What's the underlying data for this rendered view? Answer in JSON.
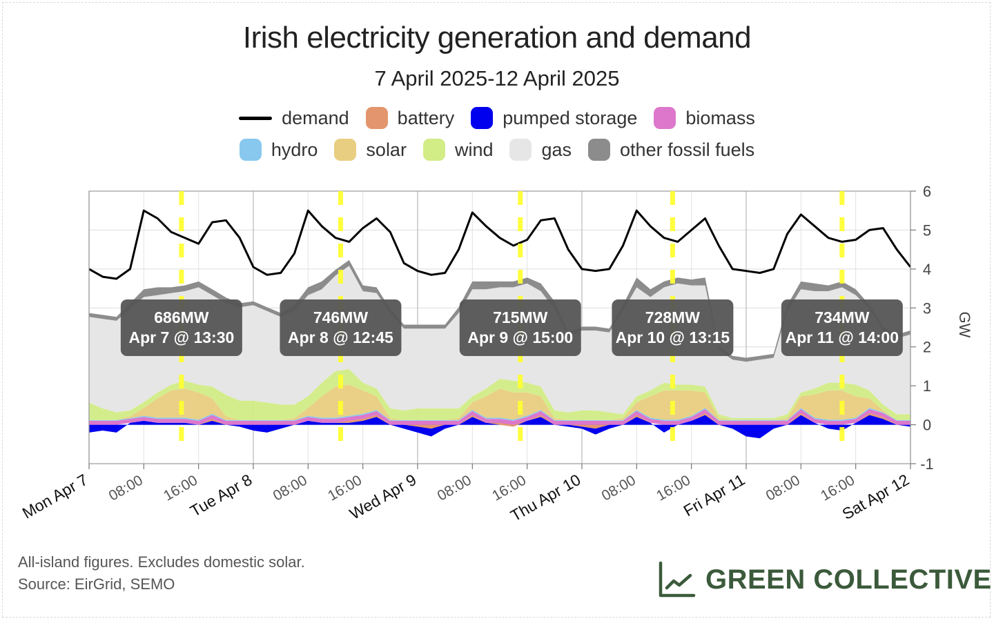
{
  "chart_data": {
    "type": "area",
    "title": "Irish electricity generation and demand",
    "subtitle": "7 April 2025-12 April 2025",
    "ylabel": "GW",
    "ylim": [
      -1,
      6
    ],
    "y_ticks": [
      "-1",
      "0",
      "1",
      "2",
      "3",
      "4",
      "5",
      "6"
    ],
    "x_ticks": [
      {
        "label": "Mon Apr 7",
        "h": 0,
        "major": true
      },
      {
        "label": "08:00",
        "h": 8,
        "major": false
      },
      {
        "label": "16:00",
        "h": 16,
        "major": false
      },
      {
        "label": "Tue Apr 8",
        "h": 24,
        "major": true
      },
      {
        "label": "08:00",
        "h": 32,
        "major": false
      },
      {
        "label": "16:00",
        "h": 40,
        "major": false
      },
      {
        "label": "Wed Apr 9",
        "h": 48,
        "major": true
      },
      {
        "label": "08:00",
        "h": 56,
        "major": false
      },
      {
        "label": "16:00",
        "h": 64,
        "major": false
      },
      {
        "label": "Thu Apr 10",
        "h": 72,
        "major": true
      },
      {
        "label": "08:00",
        "h": 80,
        "major": false
      },
      {
        "label": "16:00",
        "h": 88,
        "major": false
      },
      {
        "label": "Fri Apr 11",
        "h": 96,
        "major": true
      },
      {
        "label": "08:00",
        "h": 104,
        "major": false
      },
      {
        "label": "16:00",
        "h": 112,
        "major": false
      },
      {
        "label": "Sat Apr 12",
        "h": 120,
        "major": true
      }
    ],
    "grid": true,
    "legend_position": "top",
    "legend": [
      {
        "name": "demand",
        "kind": "line",
        "color": "#000000"
      },
      {
        "name": "battery",
        "kind": "area",
        "color": "#e3966e"
      },
      {
        "name": "pumped storage",
        "kind": "area",
        "color": "#0000ee"
      },
      {
        "name": "biomass",
        "kind": "area",
        "color": "#dd77cc"
      },
      {
        "name": "hydro",
        "kind": "area",
        "color": "#88c8ee"
      },
      {
        "name": "solar",
        "kind": "area",
        "color": "#e8ce80"
      },
      {
        "name": "wind",
        "kind": "area",
        "color": "#d2ec86"
      },
      {
        "name": "gas",
        "kind": "area",
        "color": "#e6e6e6"
      },
      {
        "name": "other fossil fuels",
        "kind": "area",
        "color": "#8c8c8c"
      }
    ],
    "x_hours": [
      0,
      2,
      4,
      6,
      8,
      10,
      12,
      14,
      16,
      18,
      20,
      22,
      24,
      26,
      28,
      30,
      32,
      34,
      36,
      38,
      40,
      42,
      44,
      46,
      48,
      50,
      52,
      54,
      56,
      58,
      60,
      62,
      64,
      66,
      68,
      70,
      72,
      74,
      76,
      78,
      80,
      82,
      84,
      86,
      88,
      90,
      92,
      94,
      96,
      98,
      100,
      102,
      104,
      106,
      108,
      110,
      112,
      114,
      116,
      118,
      120
    ],
    "series": [
      {
        "name": "demand",
        "values": [
          4.0,
          3.8,
          3.75,
          4.0,
          5.5,
          5.3,
          4.95,
          4.8,
          4.65,
          5.2,
          5.25,
          4.8,
          4.05,
          3.85,
          3.9,
          4.4,
          5.5,
          5.1,
          4.8,
          4.7,
          5.05,
          5.3,
          4.95,
          4.15,
          3.95,
          3.85,
          3.9,
          4.5,
          5.45,
          5.1,
          4.8,
          4.6,
          4.75,
          5.25,
          5.3,
          4.5,
          4.0,
          3.95,
          4.0,
          4.6,
          5.5,
          5.1,
          4.8,
          4.7,
          5.0,
          5.3,
          4.6,
          4.0,
          3.95,
          3.9,
          4.0,
          4.9,
          5.4,
          5.1,
          4.8,
          4.7,
          4.75,
          5.0,
          5.05,
          4.5,
          4.05
        ]
      },
      {
        "name": "pumped storage",
        "values": [
          -0.2,
          -0.15,
          -0.2,
          0.05,
          0.1,
          0.05,
          0.05,
          0.05,
          0.0,
          0.1,
          0.0,
          -0.05,
          -0.15,
          -0.2,
          -0.1,
          0.0,
          0.1,
          0.05,
          0.05,
          0.05,
          0.1,
          0.2,
          0.0,
          -0.1,
          -0.2,
          -0.3,
          -0.1,
          0.0,
          0.2,
          0.05,
          0.05,
          0.0,
          0.1,
          0.2,
          0.0,
          -0.05,
          -0.1,
          -0.25,
          -0.1,
          0.0,
          0.2,
          0.05,
          -0.2,
          0.0,
          0.1,
          0.25,
          0.0,
          -0.1,
          -0.3,
          -0.35,
          -0.1,
          0.0,
          0.25,
          0.05,
          -0.1,
          -0.15,
          0.05,
          0.25,
          0.15,
          0.0,
          -0.05
        ]
      },
      {
        "name": "battery",
        "values": [
          0.0,
          0.0,
          0.0,
          0.0,
          0.0,
          0.0,
          0.0,
          0.0,
          0.0,
          0.05,
          0.0,
          0.0,
          0.0,
          0.0,
          0.0,
          0.0,
          0.0,
          0.0,
          0.0,
          0.05,
          0.05,
          0.05,
          0.0,
          0.0,
          -0.05,
          -0.1,
          0.0,
          0.0,
          0.05,
          0.0,
          -0.05,
          -0.05,
          0.0,
          0.05,
          0.0,
          0.0,
          -0.05,
          -0.1,
          0.0,
          0.0,
          0.05,
          0.0,
          0.0,
          0.0,
          0.0,
          0.05,
          0.0,
          0.0,
          0.0,
          0.0,
          0.0,
          0.0,
          0.05,
          0.0,
          0.0,
          0.0,
          0.0,
          0.05,
          0.05,
          0.0,
          0.0
        ]
      },
      {
        "name": "biomass",
        "values": [
          0.1,
          0.1,
          0.1,
          0.1,
          0.1,
          0.1,
          0.1,
          0.1,
          0.1,
          0.1,
          0.1,
          0.1,
          0.1,
          0.1,
          0.1,
          0.1,
          0.1,
          0.1,
          0.1,
          0.1,
          0.1,
          0.1,
          0.1,
          0.1,
          0.1,
          0.1,
          0.1,
          0.1,
          0.1,
          0.1,
          0.1,
          0.1,
          0.1,
          0.1,
          0.1,
          0.1,
          0.1,
          0.1,
          0.1,
          0.1,
          0.1,
          0.1,
          0.1,
          0.1,
          0.1,
          0.1,
          0.1,
          0.1,
          0.1,
          0.1,
          0.1,
          0.1,
          0.1,
          0.1,
          0.1,
          0.1,
          0.1,
          0.1,
          0.1,
          0.1,
          0.1
        ]
      },
      {
        "name": "hydro",
        "values": [
          0.02,
          0.02,
          0.02,
          0.02,
          0.03,
          0.03,
          0.03,
          0.03,
          0.03,
          0.03,
          0.02,
          0.02,
          0.02,
          0.02,
          0.02,
          0.02,
          0.03,
          0.03,
          0.03,
          0.03,
          0.03,
          0.03,
          0.02,
          0.02,
          0.02,
          0.02,
          0.02,
          0.02,
          0.03,
          0.03,
          0.03,
          0.03,
          0.03,
          0.03,
          0.02,
          0.02,
          0.02,
          0.02,
          0.02,
          0.02,
          0.03,
          0.03,
          0.03,
          0.03,
          0.03,
          0.03,
          0.02,
          0.02,
          0.02,
          0.02,
          0.02,
          0.02,
          0.03,
          0.03,
          0.03,
          0.03,
          0.03,
          0.03,
          0.02,
          0.02,
          0.02
        ]
      },
      {
        "name": "solar",
        "values": [
          0.0,
          0.0,
          0.0,
          0.05,
          0.2,
          0.5,
          0.7,
          0.75,
          0.7,
          0.4,
          0.1,
          0.0,
          0.0,
          0.0,
          0.0,
          0.05,
          0.2,
          0.55,
          0.8,
          0.8,
          0.6,
          0.35,
          0.05,
          0.0,
          0.0,
          0.0,
          0.0,
          0.05,
          0.2,
          0.55,
          0.75,
          0.7,
          0.6,
          0.35,
          0.05,
          0.0,
          0.0,
          0.0,
          0.0,
          0.05,
          0.2,
          0.55,
          0.75,
          0.75,
          0.65,
          0.4,
          0.05,
          0.0,
          0.0,
          0.0,
          0.0,
          0.05,
          0.3,
          0.6,
          0.75,
          0.75,
          0.55,
          0.25,
          0.05,
          0.0,
          0.0
        ]
      },
      {
        "name": "wind",
        "values": [
          0.45,
          0.3,
          0.2,
          0.15,
          0.15,
          0.15,
          0.15,
          0.2,
          0.2,
          0.3,
          0.55,
          0.5,
          0.5,
          0.45,
          0.4,
          0.35,
          0.3,
          0.35,
          0.4,
          0.4,
          0.2,
          0.2,
          0.25,
          0.25,
          0.3,
          0.3,
          0.3,
          0.25,
          0.15,
          0.2,
          0.25,
          0.3,
          0.25,
          0.25,
          0.2,
          0.2,
          0.25,
          0.25,
          0.2,
          0.1,
          0.15,
          0.15,
          0.2,
          0.15,
          0.15,
          0.15,
          0.1,
          0.05,
          0.05,
          0.05,
          0.05,
          0.1,
          0.1,
          0.15,
          0.2,
          0.2,
          0.3,
          0.2,
          0.15,
          0.15,
          0.15
        ]
      },
      {
        "name": "gas",
        "values": [
          2.2,
          2.3,
          2.35,
          2.6,
          2.7,
          2.5,
          2.35,
          2.3,
          2.5,
          2.35,
          2.35,
          2.4,
          2.45,
          2.35,
          2.25,
          2.4,
          2.6,
          2.4,
          2.45,
          2.65,
          2.35,
          2.45,
          2.45,
          2.1,
          2.05,
          2.05,
          2.05,
          2.45,
          2.75,
          2.55,
          2.35,
          2.4,
          2.55,
          2.45,
          2.6,
          1.95,
          2.05,
          2.05,
          2.05,
          2.65,
          2.8,
          2.4,
          2.45,
          2.6,
          2.55,
          2.6,
          1.65,
          1.5,
          1.45,
          1.5,
          1.55,
          2.65,
          2.65,
          2.5,
          2.35,
          2.45,
          2.3,
          2.1,
          1.9,
          1.95,
          2.05
        ]
      },
      {
        "name": "other fossil fuels",
        "values": [
          0.1,
          0.1,
          0.1,
          0.15,
          0.2,
          0.2,
          0.15,
          0.15,
          0.15,
          0.15,
          0.15,
          0.1,
          0.1,
          0.1,
          0.1,
          0.15,
          0.2,
          0.2,
          0.15,
          0.15,
          0.15,
          0.15,
          0.1,
          0.1,
          0.1,
          0.1,
          0.1,
          0.15,
          0.2,
          0.2,
          0.15,
          0.15,
          0.15,
          0.2,
          0.2,
          0.1,
          0.1,
          0.1,
          0.1,
          0.15,
          0.25,
          0.2,
          0.15,
          0.15,
          0.15,
          0.2,
          0.1,
          0.1,
          0.1,
          0.1,
          0.1,
          0.15,
          0.2,
          0.2,
          0.15,
          0.15,
          0.15,
          0.1,
          0.1,
          0.1,
          0.1
        ]
      }
    ],
    "annotations": [
      {
        "value": "686MW",
        "time": "Apr 7 @ 13:30",
        "h": 13.5
      },
      {
        "value": "746MW",
        "time": "Apr 8 @ 12:45",
        "h": 36.75
      },
      {
        "value": "715MW",
        "time": "Apr 9 @ 15:00",
        "h": 63
      },
      {
        "value": "728MW",
        "time": "Apr 10 @ 13:15",
        "h": 85.25
      },
      {
        "value": "734MW",
        "time": "Apr 11 @ 14:00",
        "h": 110
      }
    ]
  },
  "footnote": {
    "line1": "All-island figures. Excludes domestic solar.",
    "line2": "Source: EirGrid, SEMO"
  },
  "brand": {
    "name": "GREEN COLLECTIVE",
    "icon": "line-chart-icon",
    "color": "#3b5a3b"
  }
}
